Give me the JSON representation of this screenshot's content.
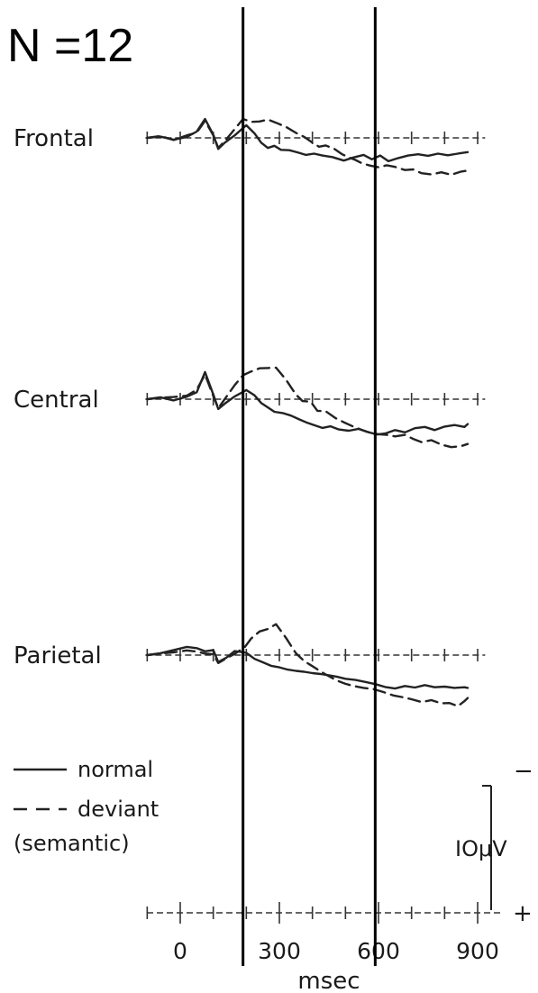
{
  "chart_data": {
    "type": "line",
    "title": "N =12",
    "xlabel": "msec",
    "x_ticks": [
      "0",
      "300",
      "600",
      "900"
    ],
    "xlim": [
      -100,
      950
    ],
    "scale_bar": {
      "label": "IOμV",
      "minus": "−",
      "plus": "+"
    },
    "legend": {
      "position": "bottom-left",
      "entries": [
        {
          "style": "solid",
          "label": "normal"
        },
        {
          "style": "dashed",
          "label": "deviant"
        },
        {
          "style": "none",
          "label": "(semantic)"
        }
      ]
    },
    "markers_msec": [
      190,
      590
    ],
    "panels": [
      {
        "name": "Frontal",
        "series": [
          {
            "name": "normal",
            "style": "solid",
            "points": [
              [
                -100,
                0
              ],
              [
                -60,
                0.4
              ],
              [
                -20,
                -0.6
              ],
              [
                20,
                0.3
              ],
              [
                50,
                2.0
              ],
              [
                75,
                6.0
              ],
              [
                100,
                1.0
              ],
              [
                115,
                -3.5
              ],
              [
                135,
                -1.5
              ],
              [
                165,
                0.8
              ],
              [
                200,
                4.0
              ],
              [
                225,
                1.4
              ],
              [
                245,
                -1.5
              ],
              [
                265,
                -3.2
              ],
              [
                285,
                -2.5
              ],
              [
                305,
                -3.8
              ],
              [
                330,
                -3.9
              ],
              [
                355,
                -4.6
              ],
              [
                380,
                -5.4
              ],
              [
                405,
                -5.0
              ],
              [
                430,
                -5.6
              ],
              [
                460,
                -6.1
              ],
              [
                495,
                -7.2
              ],
              [
                525,
                -6.2
              ],
              [
                555,
                -5.4
              ],
              [
                580,
                -6.8
              ],
              [
                605,
                -5.6
              ],
              [
                630,
                -7.4
              ],
              [
                660,
                -6.4
              ],
              [
                690,
                -5.6
              ],
              [
                720,
                -5.2
              ],
              [
                750,
                -5.7
              ],
              [
                780,
                -5.0
              ],
              [
                810,
                -5.5
              ],
              [
                840,
                -5.0
              ],
              [
                870,
                -4.5
              ]
            ]
          },
          {
            "name": "deviant",
            "style": "dashed",
            "points": [
              [
                -100,
                0
              ],
              [
                -60,
                0.6
              ],
              [
                -20,
                -0.7
              ],
              [
                20,
                0.8
              ],
              [
                50,
                1.7
              ],
              [
                75,
                5.4
              ],
              [
                100,
                0.8
              ],
              [
                115,
                -3.2
              ],
              [
                140,
                -0.4
              ],
              [
                165,
                2.8
              ],
              [
                190,
                6.0
              ],
              [
                215,
                5.1
              ],
              [
                240,
                5.2
              ],
              [
                265,
                5.8
              ],
              [
                290,
                4.8
              ],
              [
                320,
                3.5
              ],
              [
                350,
                1.6
              ],
              [
                375,
                0.3
              ],
              [
                400,
                -1.5
              ],
              [
                420,
                -2.8
              ],
              [
                440,
                -2.4
              ],
              [
                465,
                -3.4
              ],
              [
                490,
                -5.2
              ],
              [
                510,
                -6.2
              ],
              [
                530,
                -7.0
              ],
              [
                550,
                -8.1
              ],
              [
                575,
                -8.8
              ],
              [
                600,
                -9.3
              ],
              [
                625,
                -8.7
              ],
              [
                650,
                -9.2
              ],
              [
                680,
                -10.2
              ],
              [
                705,
                -10.0
              ],
              [
                730,
                -11.2
              ],
              [
                760,
                -11.6
              ],
              [
                790,
                -10.9
              ],
              [
                820,
                -11.7
              ],
              [
                850,
                -10.7
              ],
              [
                870,
                -10.4
              ]
            ]
          }
        ]
      },
      {
        "name": "Central",
        "series": [
          {
            "name": "normal",
            "style": "solid",
            "points": [
              [
                -100,
                0
              ],
              [
                -60,
                0.6
              ],
              [
                -20,
                -0.4
              ],
              [
                20,
                0.8
              ],
              [
                50,
                2.2
              ],
              [
                75,
                8.6
              ],
              [
                100,
                1.5
              ],
              [
                115,
                -3.1
              ],
              [
                135,
                -1.4
              ],
              [
                165,
                0.9
              ],
              [
                200,
                2.9
              ],
              [
                225,
                1.2
              ],
              [
                245,
                -1.2
              ],
              [
                265,
                -2.6
              ],
              [
                285,
                -4.0
              ],
              [
                310,
                -4.4
              ],
              [
                335,
                -5.2
              ],
              [
                360,
                -6.4
              ],
              [
                385,
                -7.5
              ],
              [
                410,
                -8.4
              ],
              [
                430,
                -9.1
              ],
              [
                455,
                -8.6
              ],
              [
                480,
                -9.6
              ],
              [
                510,
                -10.0
              ],
              [
                540,
                -9.4
              ],
              [
                565,
                -10.3
              ],
              [
                595,
                -11.2
              ],
              [
                620,
                -10.9
              ],
              [
                650,
                -9.8
              ],
              [
                680,
                -10.5
              ],
              [
                710,
                -9.2
              ],
              [
                740,
                -8.8
              ],
              [
                770,
                -9.8
              ],
              [
                800,
                -8.7
              ],
              [
                830,
                -8.2
              ],
              [
                860,
                -8.8
              ],
              [
                870,
                -7.9
              ]
            ]
          },
          {
            "name": "deviant",
            "style": "dashed",
            "points": [
              [
                -100,
                0
              ],
              [
                -60,
                0.5
              ],
              [
                -20,
                0.7
              ],
              [
                20,
                1.1
              ],
              [
                50,
                3.0
              ],
              [
                75,
                7.8
              ],
              [
                100,
                1.0
              ],
              [
                115,
                -2.9
              ],
              [
                140,
                0.8
              ],
              [
                165,
                4.5
              ],
              [
                190,
                7.6
              ],
              [
                215,
                8.8
              ],
              [
                240,
                9.8
              ],
              [
                265,
                9.9
              ],
              [
                290,
                10.0
              ],
              [
                320,
                6.2
              ],
              [
                350,
                1.5
              ],
              [
                370,
                -0.6
              ],
              [
                395,
                -0.8
              ],
              [
                415,
                -3.7
              ],
              [
                440,
                -3.8
              ],
              [
                470,
                -6.0
              ],
              [
                495,
                -7.3
              ],
              [
                520,
                -8.5
              ],
              [
                545,
                -9.6
              ],
              [
                570,
                -10.5
              ],
              [
                600,
                -11.1
              ],
              [
                625,
                -11.3
              ],
              [
                650,
                -11.8
              ],
              [
                680,
                -11.3
              ],
              [
                705,
                -12.6
              ],
              [
                730,
                -13.6
              ],
              [
                760,
                -13.0
              ],
              [
                790,
                -14.4
              ],
              [
                820,
                -15.2
              ],
              [
                850,
                -14.9
              ],
              [
                870,
                -14.2
              ]
            ]
          }
        ]
      },
      {
        "name": "Parietal",
        "series": [
          {
            "name": "normal",
            "style": "solid",
            "points": [
              [
                -100,
                0
              ],
              [
                -60,
                0.6
              ],
              [
                -20,
                1.6
              ],
              [
                20,
                2.6
              ],
              [
                50,
                2.2
              ],
              [
                75,
                1.2
              ],
              [
                100,
                1.6
              ],
              [
                115,
                -2.2
              ],
              [
                140,
                -0.8
              ],
              [
                165,
                1.3
              ],
              [
                200,
                0.7
              ],
              [
                225,
                -1.2
              ],
              [
                250,
                -2.3
              ],
              [
                275,
                -3.4
              ],
              [
                300,
                -3.9
              ],
              [
                325,
                -4.6
              ],
              [
                350,
                -5.0
              ],
              [
                375,
                -5.3
              ],
              [
                400,
                -5.7
              ],
              [
                425,
                -6.0
              ],
              [
                450,
                -6.4
              ],
              [
                475,
                -6.9
              ],
              [
                500,
                -7.5
              ],
              [
                530,
                -7.9
              ],
              [
                560,
                -8.5
              ],
              [
                590,
                -9.2
              ],
              [
                620,
                -10.1
              ],
              [
                650,
                -10.6
              ],
              [
                680,
                -9.8
              ],
              [
                710,
                -10.3
              ],
              [
                740,
                -9.5
              ],
              [
                770,
                -10.2
              ],
              [
                800,
                -10.0
              ],
              [
                830,
                -10.4
              ],
              [
                860,
                -10.2
              ],
              [
                870,
                -10.4
              ]
            ]
          },
          {
            "name": "deviant",
            "style": "dashed",
            "points": [
              [
                -100,
                0
              ],
              [
                -60,
                0.5
              ],
              [
                -20,
                0.9
              ],
              [
                20,
                1.5
              ],
              [
                50,
                1.1
              ],
              [
                75,
                0.5
              ],
              [
                100,
                0.3
              ],
              [
                115,
                -2.5
              ],
              [
                140,
                -1.0
              ],
              [
                165,
                0.4
              ],
              [
                195,
                2.5
              ],
              [
                215,
                5.3
              ],
              [
                240,
                7.5
              ],
              [
                265,
                8.3
              ],
              [
                290,
                9.8
              ],
              [
                320,
                5.5
              ],
              [
                350,
                0.6
              ],
              [
                375,
                -1.9
              ],
              [
                400,
                -3.5
              ],
              [
                425,
                -5.2
              ],
              [
                450,
                -6.7
              ],
              [
                475,
                -8.1
              ],
              [
                500,
                -9.1
              ],
              [
                525,
                -9.8
              ],
              [
                555,
                -10.4
              ],
              [
                585,
                -10.8
              ],
              [
                615,
                -11.7
              ],
              [
                645,
                -12.8
              ],
              [
                670,
                -13.3
              ],
              [
                700,
                -14.0
              ],
              [
                730,
                -14.9
              ],
              [
                760,
                -14.3
              ],
              [
                790,
                -15.3
              ],
              [
                815,
                -15.2
              ],
              [
                840,
                -16.2
              ],
              [
                860,
                -14.6
              ],
              [
                870,
                -13.6
              ]
            ]
          }
        ]
      }
    ]
  }
}
